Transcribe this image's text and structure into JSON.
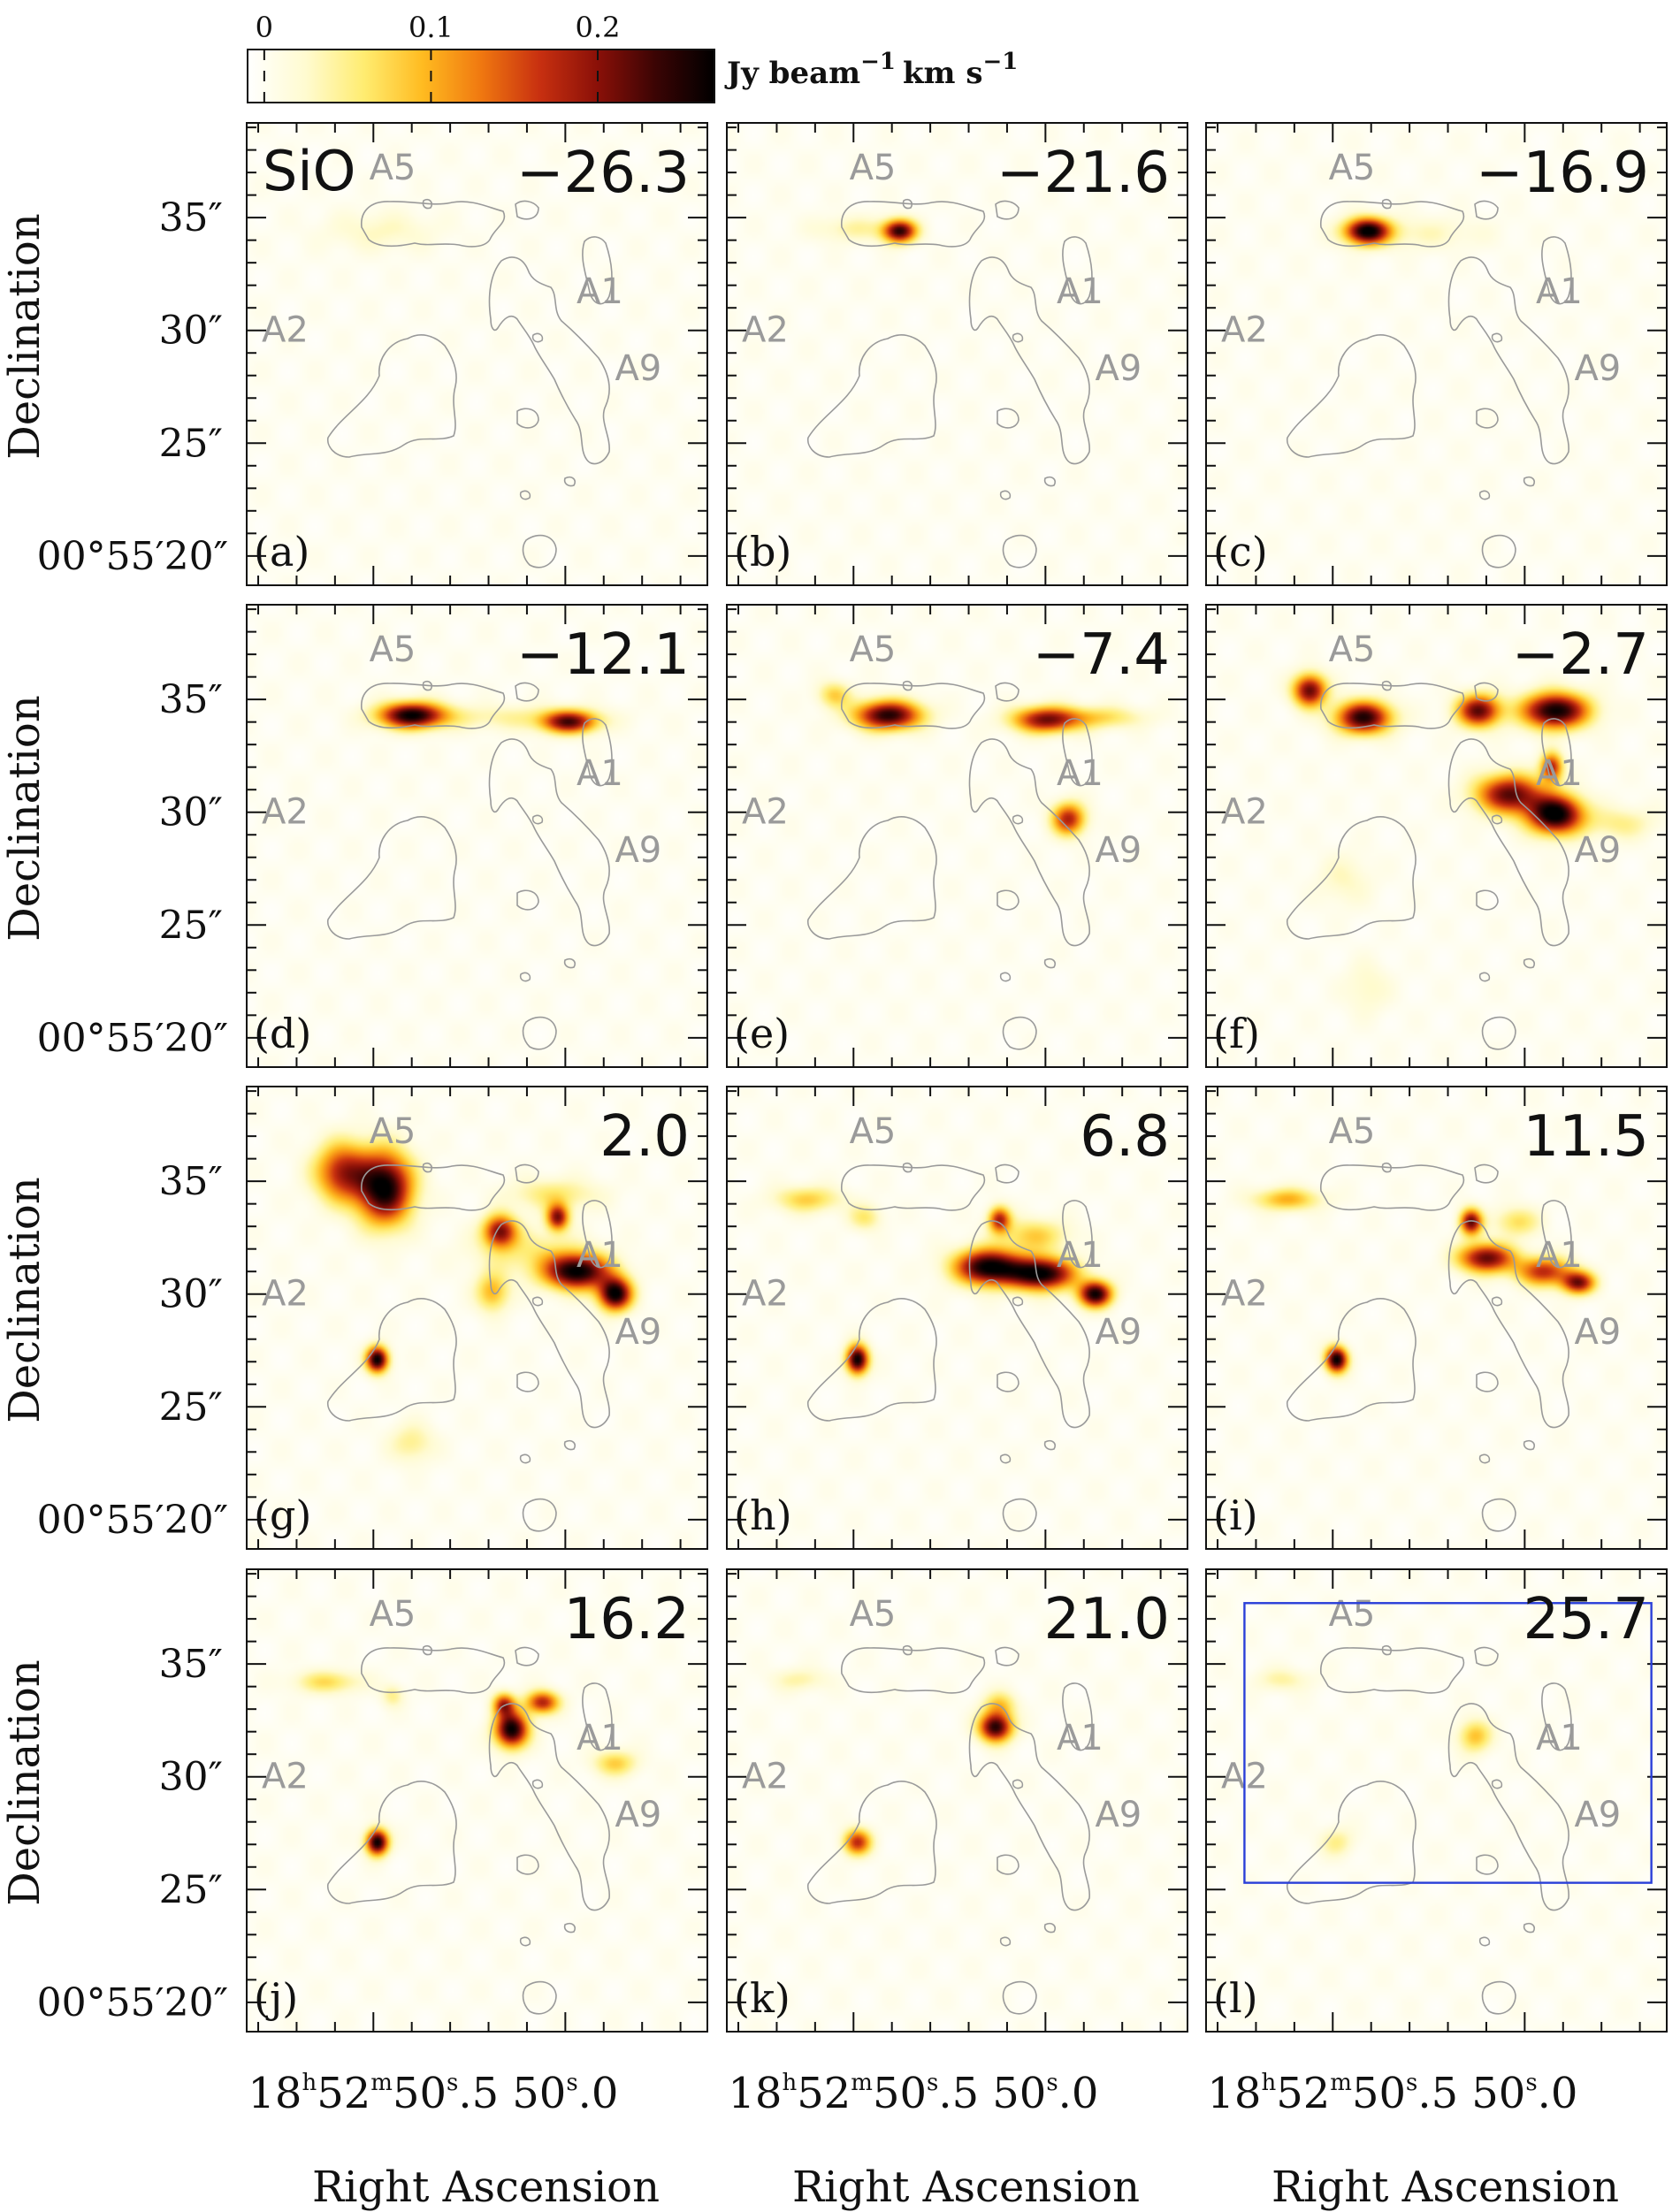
{
  "chart_data": {
    "type": "heatmap",
    "colorbar": {
      "ticks": [
        "0",
        "0.1",
        "0.2"
      ],
      "tick_values": [
        0,
        0.1,
        0.2
      ],
      "range": [
        -0.01,
        0.27
      ],
      "unit": "Jy beam",
      "unit_sup1": "−1",
      "unit_km": "km s",
      "unit_sup2": "−1",
      "colors": [
        "#ffffff",
        "#fffbd0",
        "#ffec70",
        "#ffbb20",
        "#f07810",
        "#c83010",
        "#8a1008",
        "#3a0404",
        "#000000"
      ]
    },
    "axes": {
      "xlabel": "Right Ascension",
      "ylabel": "Declination",
      "yticks": [
        "35″",
        "30″",
        "25″",
        "00°55′20″"
      ],
      "ytick_values": [
        35,
        30,
        25,
        20
      ],
      "ylim": [
        18.7,
        39.2
      ],
      "xticks": [
        {
          "h": "18",
          "hu": "h",
          "m": "52",
          "mu": "m",
          "s": "50",
          "su": "s",
          "f": ".5",
          "value": 50.5
        },
        {
          "h": "",
          "hu": "",
          "m": "",
          "mu": "",
          "s": "50",
          "su": "s",
          "f": ".0",
          "value": 50.0
        }
      ],
      "xlim_seconds": [
        50.83,
        49.63
      ]
    },
    "molecule": "SiO",
    "region_labels": [
      {
        "text": "A5",
        "ra": 50.45,
        "dec": 36.7
      },
      {
        "text": "A2",
        "ra": 50.73,
        "dec": 29.5
      },
      {
        "text": "A1",
        "ra": 49.91,
        "dec": 31.2
      },
      {
        "text": "A9",
        "ra": 49.81,
        "dec": 27.8
      }
    ],
    "panels": [
      {
        "label": "(a)",
        "velocity": "−26.3",
        "show_molecule": true,
        "blobs": [
          {
            "ra": 50.48,
            "dec": 34.4,
            "sx": 0.1,
            "sy": 0.6,
            "peak": 0.03
          }
        ]
      },
      {
        "label": "(b)",
        "velocity": "−21.6",
        "blobs": [
          {
            "ra": 50.38,
            "dec": 34.4,
            "sx": 0.03,
            "sy": 0.35,
            "peak": 0.24
          },
          {
            "ra": 50.5,
            "dec": 34.5,
            "sx": 0.07,
            "sy": 0.4,
            "peak": 0.04
          }
        ]
      },
      {
        "label": "(c)",
        "velocity": "−16.9",
        "blobs": [
          {
            "ra": 50.41,
            "dec": 34.4,
            "sx": 0.04,
            "sy": 0.4,
            "peak": 0.27
          },
          {
            "ra": 50.28,
            "dec": 34.3,
            "sx": 0.12,
            "sy": 0.5,
            "peak": 0.03
          }
        ]
      },
      {
        "label": "(d)",
        "velocity": "−12.1",
        "blobs": [
          {
            "ra": 50.4,
            "dec": 34.3,
            "sx": 0.06,
            "sy": 0.4,
            "peak": 0.26
          },
          {
            "ra": 49.99,
            "dec": 34.0,
            "sx": 0.05,
            "sy": 0.35,
            "peak": 0.21
          },
          {
            "ra": 50.15,
            "dec": 34.2,
            "sx": 0.16,
            "sy": 0.4,
            "peak": 0.04
          }
        ]
      },
      {
        "label": "(e)",
        "velocity": "−7.4",
        "blobs": [
          {
            "ra": 50.41,
            "dec": 34.3,
            "sx": 0.06,
            "sy": 0.45,
            "peak": 0.25
          },
          {
            "ra": 50.0,
            "dec": 34.1,
            "sx": 0.06,
            "sy": 0.4,
            "peak": 0.2
          },
          {
            "ra": 49.86,
            "dec": 34.2,
            "sx": 0.08,
            "sy": 0.35,
            "peak": 0.07
          },
          {
            "ra": 49.94,
            "dec": 29.7,
            "sx": 0.03,
            "sy": 0.5,
            "peak": 0.18
          },
          {
            "ra": 50.55,
            "dec": 35.2,
            "sx": 0.03,
            "sy": 0.4,
            "peak": 0.08
          }
        ]
      },
      {
        "label": "(f)",
        "velocity": "−2.7",
        "blobs": [
          {
            "ra": 50.56,
            "dec": 35.4,
            "sx": 0.03,
            "sy": 0.5,
            "peak": 0.22
          },
          {
            "ra": 50.42,
            "dec": 34.2,
            "sx": 0.05,
            "sy": 0.5,
            "peak": 0.25
          },
          {
            "ra": 50.12,
            "dec": 34.5,
            "sx": 0.04,
            "sy": 0.5,
            "peak": 0.22
          },
          {
            "ra": 49.92,
            "dec": 34.5,
            "sx": 0.06,
            "sy": 0.55,
            "peak": 0.27
          },
          {
            "ra": 49.92,
            "dec": 29.9,
            "sx": 0.05,
            "sy": 0.6,
            "peak": 0.28
          },
          {
            "ra": 50.04,
            "dec": 30.8,
            "sx": 0.06,
            "sy": 0.6,
            "peak": 0.22
          },
          {
            "ra": 49.93,
            "dec": 32.0,
            "sx": 0.02,
            "sy": 0.45,
            "peak": 0.18
          },
          {
            "ra": 49.75,
            "dec": 29.5,
            "sx": 0.06,
            "sy": 0.5,
            "peak": 0.05
          },
          {
            "ra": 50.47,
            "dec": 27.0,
            "sx": 0.05,
            "sy": 0.8,
            "peak": 0.03
          },
          {
            "ra": 50.41,
            "dec": 22.2,
            "sx": 0.04,
            "sy": 0.8,
            "peak": 0.03
          }
        ]
      },
      {
        "label": "(g)",
        "velocity": "2.0",
        "blobs": [
          {
            "ra": 50.58,
            "dec": 35.4,
            "sx": 0.05,
            "sy": 0.9,
            "peak": 0.18
          },
          {
            "ra": 50.47,
            "dec": 34.7,
            "sx": 0.05,
            "sy": 1.1,
            "peak": 0.27
          },
          {
            "ra": 49.97,
            "dec": 31.0,
            "sx": 0.06,
            "sy": 0.55,
            "peak": 0.27
          },
          {
            "ra": 49.87,
            "dec": 30.0,
            "sx": 0.03,
            "sy": 0.5,
            "peak": 0.27
          },
          {
            "ra": 50.17,
            "dec": 32.8,
            "sx": 0.03,
            "sy": 0.5,
            "peak": 0.2
          },
          {
            "ra": 50.02,
            "dec": 33.4,
            "sx": 0.02,
            "sy": 0.4,
            "peak": 0.2
          },
          {
            "ra": 50.03,
            "dec": 34.4,
            "sx": 0.08,
            "sy": 0.5,
            "peak": 0.06
          },
          {
            "ra": 50.19,
            "dec": 30.1,
            "sx": 0.03,
            "sy": 0.6,
            "peak": 0.1
          },
          {
            "ra": 50.1,
            "dec": 31.9,
            "sx": 0.1,
            "sy": 0.7,
            "peak": 0.05
          },
          {
            "ra": 50.49,
            "dec": 27.1,
            "sx": 0.02,
            "sy": 0.4,
            "peak": 0.27
          },
          {
            "ra": 50.4,
            "dec": 23.4,
            "sx": 0.04,
            "sy": 0.6,
            "peak": 0.05
          }
        ]
      },
      {
        "label": "(h)",
        "velocity": "6.8",
        "blobs": [
          {
            "ra": 50.62,
            "dec": 34.2,
            "sx": 0.06,
            "sy": 0.4,
            "peak": 0.08
          },
          {
            "ra": 50.47,
            "dec": 33.4,
            "sx": 0.03,
            "sy": 0.4,
            "peak": 0.06
          },
          {
            "ra": 50.15,
            "dec": 31.2,
            "sx": 0.06,
            "sy": 0.55,
            "peak": 0.27
          },
          {
            "ra": 50.01,
            "dec": 30.9,
            "sx": 0.06,
            "sy": 0.5,
            "peak": 0.27
          },
          {
            "ra": 49.87,
            "dec": 30.0,
            "sx": 0.03,
            "sy": 0.4,
            "peak": 0.26
          },
          {
            "ra": 50.12,
            "dec": 33.3,
            "sx": 0.02,
            "sy": 0.4,
            "peak": 0.18
          },
          {
            "ra": 50.03,
            "dec": 32.6,
            "sx": 0.06,
            "sy": 0.5,
            "peak": 0.08
          },
          {
            "ra": 50.49,
            "dec": 27.1,
            "sx": 0.02,
            "sy": 0.45,
            "peak": 0.27
          }
        ]
      },
      {
        "label": "(i)",
        "velocity": "11.5",
        "blobs": [
          {
            "ra": 50.62,
            "dec": 34.2,
            "sx": 0.06,
            "sy": 0.35,
            "peak": 0.1
          },
          {
            "ra": 50.1,
            "dec": 31.6,
            "sx": 0.05,
            "sy": 0.45,
            "peak": 0.22
          },
          {
            "ra": 49.95,
            "dec": 31.0,
            "sx": 0.05,
            "sy": 0.45,
            "peak": 0.17
          },
          {
            "ra": 49.86,
            "dec": 30.5,
            "sx": 0.03,
            "sy": 0.35,
            "peak": 0.2
          },
          {
            "ra": 50.14,
            "dec": 33.2,
            "sx": 0.02,
            "sy": 0.4,
            "peak": 0.22
          },
          {
            "ra": 50.02,
            "dec": 33.2,
            "sx": 0.04,
            "sy": 0.45,
            "peak": 0.07
          },
          {
            "ra": 50.49,
            "dec": 27.1,
            "sx": 0.02,
            "sy": 0.4,
            "peak": 0.27
          }
        ]
      },
      {
        "label": "(j)",
        "velocity": "16.2",
        "blobs": [
          {
            "ra": 50.62,
            "dec": 34.2,
            "sx": 0.06,
            "sy": 0.35,
            "peak": 0.07
          },
          {
            "ra": 50.45,
            "dec": 33.6,
            "sx": 0.02,
            "sy": 0.35,
            "peak": 0.05
          },
          {
            "ra": 50.14,
            "dec": 32.1,
            "sx": 0.03,
            "sy": 0.55,
            "peak": 0.27
          },
          {
            "ra": 50.16,
            "dec": 33.2,
            "sx": 0.02,
            "sy": 0.35,
            "peak": 0.17
          },
          {
            "ra": 50.06,
            "dec": 33.3,
            "sx": 0.03,
            "sy": 0.35,
            "peak": 0.18
          },
          {
            "ra": 49.87,
            "dec": 30.6,
            "sx": 0.04,
            "sy": 0.4,
            "peak": 0.08
          },
          {
            "ra": 50.49,
            "dec": 27.1,
            "sx": 0.02,
            "sy": 0.4,
            "peak": 0.27
          }
        ]
      },
      {
        "label": "(k)",
        "velocity": "21.0",
        "blobs": [
          {
            "ra": 50.13,
            "dec": 32.2,
            "sx": 0.03,
            "sy": 0.45,
            "peak": 0.25
          },
          {
            "ra": 50.12,
            "dec": 33.2,
            "sx": 0.03,
            "sy": 0.4,
            "peak": 0.08
          },
          {
            "ra": 50.64,
            "dec": 34.3,
            "sx": 0.05,
            "sy": 0.35,
            "peak": 0.04
          },
          {
            "ra": 50.49,
            "dec": 27.1,
            "sx": 0.025,
            "sy": 0.4,
            "peak": 0.17
          }
        ]
      },
      {
        "label": "(l)",
        "velocity": "25.7",
        "box": {
          "ra": [
            50.73,
            49.67
          ],
          "dec": [
            37.7,
            25.3
          ]
        },
        "blobs": [
          {
            "ra": 50.13,
            "dec": 31.8,
            "sx": 0.03,
            "sy": 0.5,
            "peak": 0.09
          },
          {
            "ra": 50.63,
            "dec": 34.3,
            "sx": 0.05,
            "sy": 0.35,
            "peak": 0.04
          },
          {
            "ra": 50.49,
            "dec": 27.1,
            "sx": 0.03,
            "sy": 0.45,
            "peak": 0.05
          }
        ]
      }
    ]
  }
}
